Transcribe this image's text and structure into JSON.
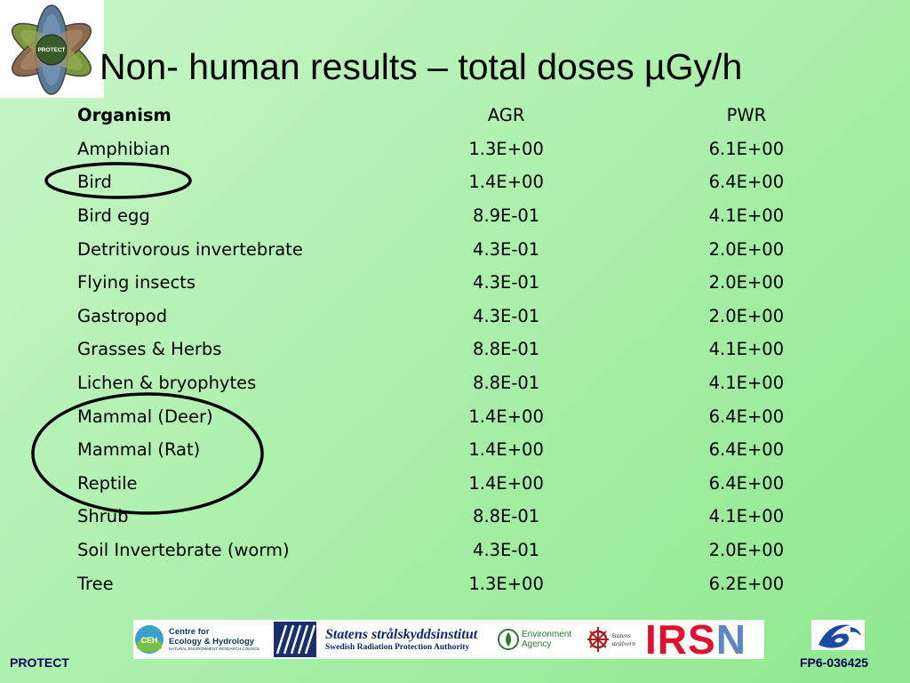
{
  "slide": {
    "title": "Non- human results – total doses µGy/h",
    "logo_label": "PROTECT"
  },
  "table": {
    "headers": [
      "Organism",
      "AGR",
      "PWR"
    ],
    "rows": [
      [
        "Amphibian",
        "1.3E+00",
        "6.1E+00"
      ],
      [
        "Bird",
        "1.4E+00",
        "6.4E+00"
      ],
      [
        "Bird egg",
        "8.9E-01",
        "4.1E+00"
      ],
      [
        "Detritivorous invertebrate",
        "4.3E-01",
        "2.0E+00"
      ],
      [
        "Flying insects",
        "4.3E-01",
        "2.0E+00"
      ],
      [
        "Gastropod",
        "4.3E-01",
        "2.0E+00"
      ],
      [
        "Grasses & Herbs",
        "8.8E-01",
        "4.1E+00"
      ],
      [
        "Lichen & bryophytes",
        "8.8E-01",
        "4.1E+00"
      ],
      [
        "Mammal (Deer)",
        "1.4E+00",
        "6.4E+00"
      ],
      [
        "Mammal (Rat)",
        "1.4E+00",
        "6.4E+00"
      ],
      [
        "Reptile",
        "1.4E+00",
        "6.4E+00"
      ],
      [
        "Shrub",
        "8.8E-01",
        "4.1E+00"
      ],
      [
        "Soil Invertebrate (worm)",
        "4.3E-01",
        "2.0E+00"
      ],
      [
        "Tree",
        "1.3E+00",
        "6.2E+00"
      ]
    ]
  },
  "partners": {
    "ceh_line1": "Centre for",
    "ceh_line2": "Ecology & Hydrology",
    "ceh_sub": "NATURAL ENVIRONMENT RESEARCH COUNCIL",
    "ssi_line1": "Statens strålskyddsinstitut",
    "ssi_line2": "Swedish Radiation Protection Authority",
    "ea_line1": "Environment",
    "ea_line2": "Agency",
    "ss_line1": "Statens",
    "ss_line2": "strålvern",
    "irsn_main": "IRS",
    "irsn_last": "N"
  },
  "footer": {
    "left": "PROTECT",
    "right": "FP6-036425"
  },
  "colors": {
    "background": "#aef0ae",
    "title": "#000000",
    "footer_text": "#00005c",
    "circle": "#000000",
    "irsn_red": "#e0102f",
    "irsn_blue": "#5f86c4"
  },
  "icons": [
    "protect-atom-logo-icon",
    "ceh-logo-icon",
    "unit-logo-icon",
    "environment-agency-icon",
    "stralevern-icon",
    "eu-fp6-logo-icon"
  ],
  "annotations": {
    "circled_rows": [
      "Bird",
      "Mammal (Deer)",
      "Mammal (Rat)",
      "Reptile"
    ]
  }
}
